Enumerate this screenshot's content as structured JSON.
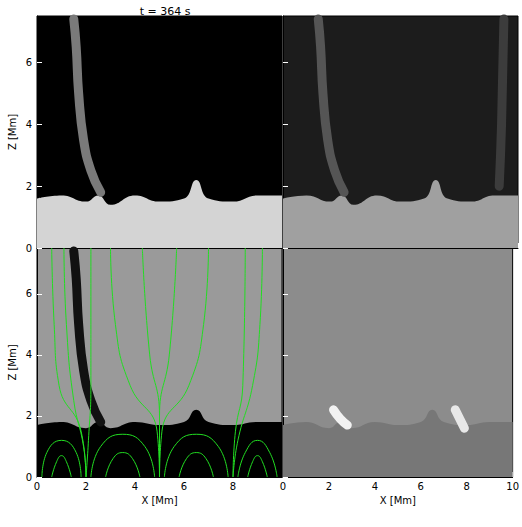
{
  "chart_data": {
    "type": "line",
    "title": "t = 364 s",
    "x_label": "X [Mm]",
    "y_label": "Z [Mm]",
    "xlim": [
      0,
      10
    ],
    "ylim": [
      0,
      7.5
    ],
    "panels": [
      {
        "background": "#000000",
        "tick_labels": "y",
        "xticks": [
          0,
          2,
          4,
          6,
          8
        ],
        "yticks": [
          0,
          2,
          4,
          6
        ],
        "layer": {
          "color": "#d4d4d4",
          "x": [
            0,
            1,
            2,
            2.5,
            3,
            4,
            5,
            6,
            6.5,
            7,
            8,
            9,
            10
          ],
          "z": [
            1.6,
            1.7,
            1.5,
            1.7,
            1.4,
            1.7,
            1.5,
            1.6,
            2.2,
            1.6,
            1.5,
            1.7,
            1.7
          ]
        },
        "jets": [
          {
            "color": "#7a7a7a",
            "points": [
              [
                2.6,
                1.8
              ],
              [
                2.2,
                2.5
              ],
              [
                1.9,
                3.5
              ],
              [
                1.7,
                5
              ],
              [
                1.6,
                6.5
              ],
              [
                1.5,
                7.4
              ]
            ]
          }
        ]
      },
      {
        "background": "#1c1c1c",
        "tick_labels": false,
        "xticks": [
          0,
          2,
          4,
          6,
          8,
          10
        ],
        "yticks": [
          0,
          2,
          4,
          6
        ],
        "layer": {
          "color": "#a0a0a0",
          "x": [
            0,
            1,
            2,
            2.5,
            3,
            4,
            5,
            6,
            6.5,
            7,
            8,
            9,
            10
          ],
          "z": [
            1.6,
            1.7,
            1.5,
            1.7,
            1.4,
            1.7,
            1.5,
            1.6,
            2.2,
            1.6,
            1.5,
            1.7,
            1.7
          ]
        },
        "jets": [
          {
            "color": "#555555",
            "points": [
              [
                2.6,
                1.8
              ],
              [
                2.2,
                2.5
              ],
              [
                1.9,
                3.5
              ],
              [
                1.7,
                5
              ],
              [
                1.6,
                6.5
              ],
              [
                1.5,
                7.4
              ]
            ]
          },
          {
            "color": "#3c3c3c",
            "points": [
              [
                9.2,
                2
              ],
              [
                9.3,
                4
              ],
              [
                9.4,
                7.4
              ]
            ]
          }
        ]
      },
      {
        "background": "#9a9a9a",
        "xticks": [
          0,
          2,
          4,
          6,
          8
        ],
        "yticks": [
          0,
          2,
          4,
          6
        ],
        "layer": {
          "color": "#000000",
          "x": [
            0,
            1,
            2,
            2.5,
            3,
            4,
            5,
            6,
            6.5,
            7,
            8,
            9,
            10
          ],
          "z": [
            1.7,
            1.8,
            1.6,
            1.8,
            1.6,
            1.8,
            1.7,
            1.8,
            2.2,
            1.8,
            1.7,
            1.8,
            1.8
          ]
        },
        "jets": [
          {
            "color": "#111111",
            "points": [
              [
                2.6,
                1.8
              ],
              [
                2.2,
                2.5
              ],
              [
                1.9,
                3.5
              ],
              [
                1.7,
                5
              ],
              [
                1.6,
                6.5
              ],
              [
                1.5,
                7.4
              ]
            ]
          }
        ],
        "field_lines": {
          "color": "#22dd22",
          "lines": [
            [
              [
                0.2,
                0
              ],
              [
                0.4,
                0.8
              ],
              [
                1,
                1.2
              ],
              [
                1.6,
                0.8
              ],
              [
                1.8,
                0
              ]
            ],
            [
              [
                0.6,
                0
              ],
              [
                0.8,
                0.5
              ],
              [
                1,
                0.7
              ],
              [
                1.2,
                0.5
              ],
              [
                1.4,
                0
              ]
            ],
            [
              [
                2.2,
                0
              ],
              [
                2.6,
                1
              ],
              [
                3.5,
                1.4
              ],
              [
                4.4,
                1
              ],
              [
                4.8,
                0
              ]
            ],
            [
              [
                2.8,
                0
              ],
              [
                3.1,
                0.6
              ],
              [
                3.5,
                0.8
              ],
              [
                3.9,
                0.6
              ],
              [
                4.2,
                0
              ]
            ],
            [
              [
                5.2,
                0
              ],
              [
                5.6,
                1
              ],
              [
                6.5,
                1.4
              ],
              [
                7.4,
                1
              ],
              [
                7.8,
                0
              ]
            ],
            [
              [
                5.8,
                0
              ],
              [
                6.1,
                0.6
              ],
              [
                6.5,
                0.8
              ],
              [
                6.9,
                0.6
              ],
              [
                7.2,
                0
              ]
            ],
            [
              [
                8.2,
                0
              ],
              [
                8.5,
                0.8
              ],
              [
                9,
                1.2
              ],
              [
                9.5,
                0.8
              ],
              [
                9.8,
                0
              ]
            ],
            [
              [
                8.6,
                0
              ],
              [
                8.8,
                0.5
              ],
              [
                9,
                0.7
              ],
              [
                9.2,
                0.5
              ],
              [
                9.4,
                0
              ]
            ],
            [
              [
                2,
                0
              ],
              [
                1.9,
                1
              ],
              [
                1.5,
                2.5
              ],
              [
                1.2,
                5
              ],
              [
                1.1,
                7.5
              ]
            ],
            [
              [
                2,
                0
              ],
              [
                2.1,
                1.2
              ],
              [
                2.2,
                3
              ],
              [
                2.2,
                5
              ],
              [
                2.2,
                7.5
              ]
            ],
            [
              [
                2,
                0
              ],
              [
                1.8,
                1.5
              ],
              [
                0.9,
                3
              ],
              [
                0.7,
                5
              ],
              [
                0.6,
                7.5
              ]
            ],
            [
              [
                5,
                0
              ],
              [
                4.9,
                1.5
              ],
              [
                3.8,
                3
              ],
              [
                3.2,
                5
              ],
              [
                3,
                7.5
              ]
            ],
            [
              [
                5,
                0
              ],
              [
                5,
                2
              ],
              [
                4.6,
                4
              ],
              [
                4.3,
                7.5
              ]
            ],
            [
              [
                5,
                0
              ],
              [
                5,
                2
              ],
              [
                5.4,
                4
              ],
              [
                5.7,
                7.5
              ]
            ],
            [
              [
                5,
                0
              ],
              [
                5.1,
                1.5
              ],
              [
                6.2,
                3
              ],
              [
                6.8,
                5
              ],
              [
                7,
                7.5
              ]
            ],
            [
              [
                8,
                0
              ],
              [
                8.2,
                1.2
              ],
              [
                8.8,
                3
              ],
              [
                9.1,
                5
              ],
              [
                9.2,
                7.5
              ]
            ],
            [
              [
                8,
                0
              ],
              [
                8.1,
                1.5
              ],
              [
                8.4,
                3
              ],
              [
                8.5,
                7.5
              ]
            ]
          ]
        }
      },
      {
        "background": "#8c8c8c",
        "tick_labels": "x",
        "xticks": [
          0,
          2,
          4,
          6,
          8,
          10
        ],
        "yticks": [
          0,
          2,
          4,
          6
        ],
        "layer": {
          "color": "#777777",
          "x": [
            0,
            1,
            2,
            2.5,
            3,
            4,
            5,
            6,
            6.5,
            7,
            8,
            9,
            10
          ],
          "z": [
            1.7,
            1.8,
            1.6,
            1.8,
            1.6,
            1.8,
            1.7,
            1.8,
            2.2,
            1.8,
            1.7,
            1.8,
            1.8
          ]
        },
        "jets": [
          {
            "color": "#f2f2f2",
            "points": [
              [
                2.2,
                2.2
              ],
              [
                2.5,
                1.9
              ],
              [
                2.8,
                1.7
              ]
            ]
          },
          {
            "color": "#e8e8e8",
            "points": [
              [
                7.5,
                2.2
              ],
              [
                7.7,
                1.9
              ],
              [
                7.9,
                1.6
              ]
            ]
          }
        ]
      }
    ]
  }
}
